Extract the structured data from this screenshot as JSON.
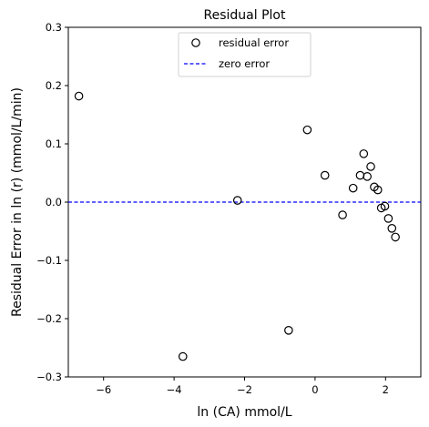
{
  "chart_data": {
    "type": "scatter",
    "title": "Residual Plot",
    "xlabel": "ln (CA) mmol/L",
    "ylabel": "Residual Error in ln (r) (mmol/L/min)",
    "xlim": [
      -7,
      3
    ],
    "ylim": [
      -0.3,
      0.3
    ],
    "x_ticks": [
      -6,
      -4,
      -2,
      0,
      2
    ],
    "y_ticks": [
      -0.3,
      -0.2,
      -0.1,
      0.0,
      0.1,
      0.2,
      0.3
    ],
    "x_tick_labels": [
      "−6",
      "−4",
      "−2",
      "0",
      "2"
    ],
    "y_tick_labels": [
      "−0.3",
      "−0.2",
      "−0.1",
      "0.0",
      "0.1",
      "0.2",
      "0.3"
    ],
    "grid": false,
    "legend_position": "top-center",
    "series": [
      {
        "name": "residual error",
        "marker": "open-circle",
        "color": "#000000",
        "points": [
          {
            "x": -6.7,
            "y": 0.182
          },
          {
            "x": -3.75,
            "y": -0.265
          },
          {
            "x": -2.2,
            "y": 0.003
          },
          {
            "x": -0.75,
            "y": -0.22
          },
          {
            "x": -0.22,
            "y": 0.124
          },
          {
            "x": 0.28,
            "y": 0.046
          },
          {
            "x": 0.78,
            "y": -0.022
          },
          {
            "x": 1.08,
            "y": 0.024
          },
          {
            "x": 1.28,
            "y": 0.046
          },
          {
            "x": 1.38,
            "y": 0.083
          },
          {
            "x": 1.48,
            "y": 0.044
          },
          {
            "x": 1.58,
            "y": 0.061
          },
          {
            "x": 1.68,
            "y": 0.026
          },
          {
            "x": 1.78,
            "y": 0.021
          },
          {
            "x": 1.88,
            "y": -0.01
          },
          {
            "x": 1.98,
            "y": -0.007
          },
          {
            "x": 2.08,
            "y": -0.028
          },
          {
            "x": 2.18,
            "y": -0.045
          },
          {
            "x": 2.28,
            "y": -0.06
          }
        ]
      }
    ],
    "reference_line": {
      "name": "zero error",
      "y": 0,
      "style": "dashed",
      "color": "#0000ff"
    }
  }
}
